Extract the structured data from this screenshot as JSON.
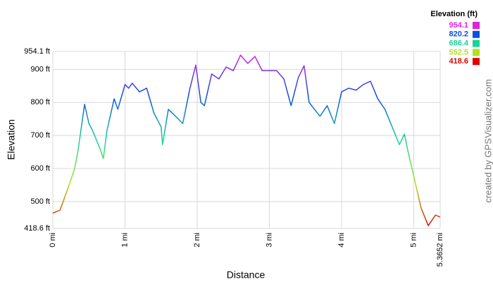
{
  "chart_data": {
    "type": "line",
    "x_label": "Distance",
    "y_label": "Elevation",
    "credit": "created by GPSVisualizer.com",
    "legend_title": "Elevation (ft)",
    "color_scale": [
      {
        "value": 954.1,
        "color": "#e020e0"
      },
      {
        "value": 820.2,
        "color": "#0a4fe0"
      },
      {
        "value": 686.4,
        "color": "#18d49a"
      },
      {
        "value": 552.5,
        "color": "#b4e020"
      },
      {
        "value": 418.6,
        "color": "#e00000"
      }
    ],
    "xlim": [
      0,
      5.3652
    ],
    "ylim": [
      418.6,
      954.1
    ],
    "xticks": [
      {
        "value": 0,
        "label": "0 mi"
      },
      {
        "value": 1,
        "label": "1 mi"
      },
      {
        "value": 2,
        "label": "2 mi"
      },
      {
        "value": 3,
        "label": "3 mi"
      },
      {
        "value": 4,
        "label": "4 mi"
      },
      {
        "value": 5,
        "label": "5 mi"
      },
      {
        "value": 5.3652,
        "label": "5.3652 mi"
      }
    ],
    "yticks": [
      {
        "value": 418.6,
        "label": "418.6 ft"
      },
      {
        "value": 500,
        "label": "500 ft"
      },
      {
        "value": 600,
        "label": "600 ft"
      },
      {
        "value": 700,
        "label": "700 ft"
      },
      {
        "value": 800,
        "label": "800 ft"
      },
      {
        "value": 900,
        "label": "900 ft"
      },
      {
        "value": 954.1,
        "label": "954.1 ft"
      }
    ],
    "grid": true,
    "x": [
      0,
      0.1,
      0.2,
      0.3,
      0.35,
      0.44,
      0.5,
      0.55,
      0.65,
      0.7,
      0.75,
      0.85,
      0.9,
      1.0,
      1.05,
      1.1,
      1.2,
      1.3,
      1.4,
      1.5,
      1.52,
      1.6,
      1.7,
      1.8,
      1.9,
      1.98,
      2.05,
      2.1,
      2.2,
      2.3,
      2.4,
      2.5,
      2.6,
      2.7,
      2.8,
      2.9,
      3.0,
      3.1,
      3.2,
      3.3,
      3.4,
      3.48,
      3.55,
      3.7,
      3.8,
      3.9,
      4.0,
      4.1,
      4.2,
      4.3,
      4.4,
      4.5,
      4.6,
      4.7,
      4.8,
      4.87,
      4.92,
      5.0,
      5.1,
      5.2,
      5.3,
      5.3652
    ],
    "values": [
      465,
      474,
      534,
      598,
      655,
      794,
      736,
      715,
      662,
      630,
      715,
      811,
      779,
      854,
      843,
      858,
      832,
      843,
      768,
      726,
      672,
      779,
      758,
      736,
      843,
      913,
      800,
      790,
      886,
      871,
      907,
      896,
      943,
      918,
      939,
      896,
      896,
      896,
      871,
      790,
      875,
      911,
      800,
      758,
      790,
      736,
      832,
      843,
      837,
      854,
      864,
      811,
      779,
      726,
      672,
      704,
      651,
      576,
      481,
      427,
      459,
      453
    ]
  }
}
